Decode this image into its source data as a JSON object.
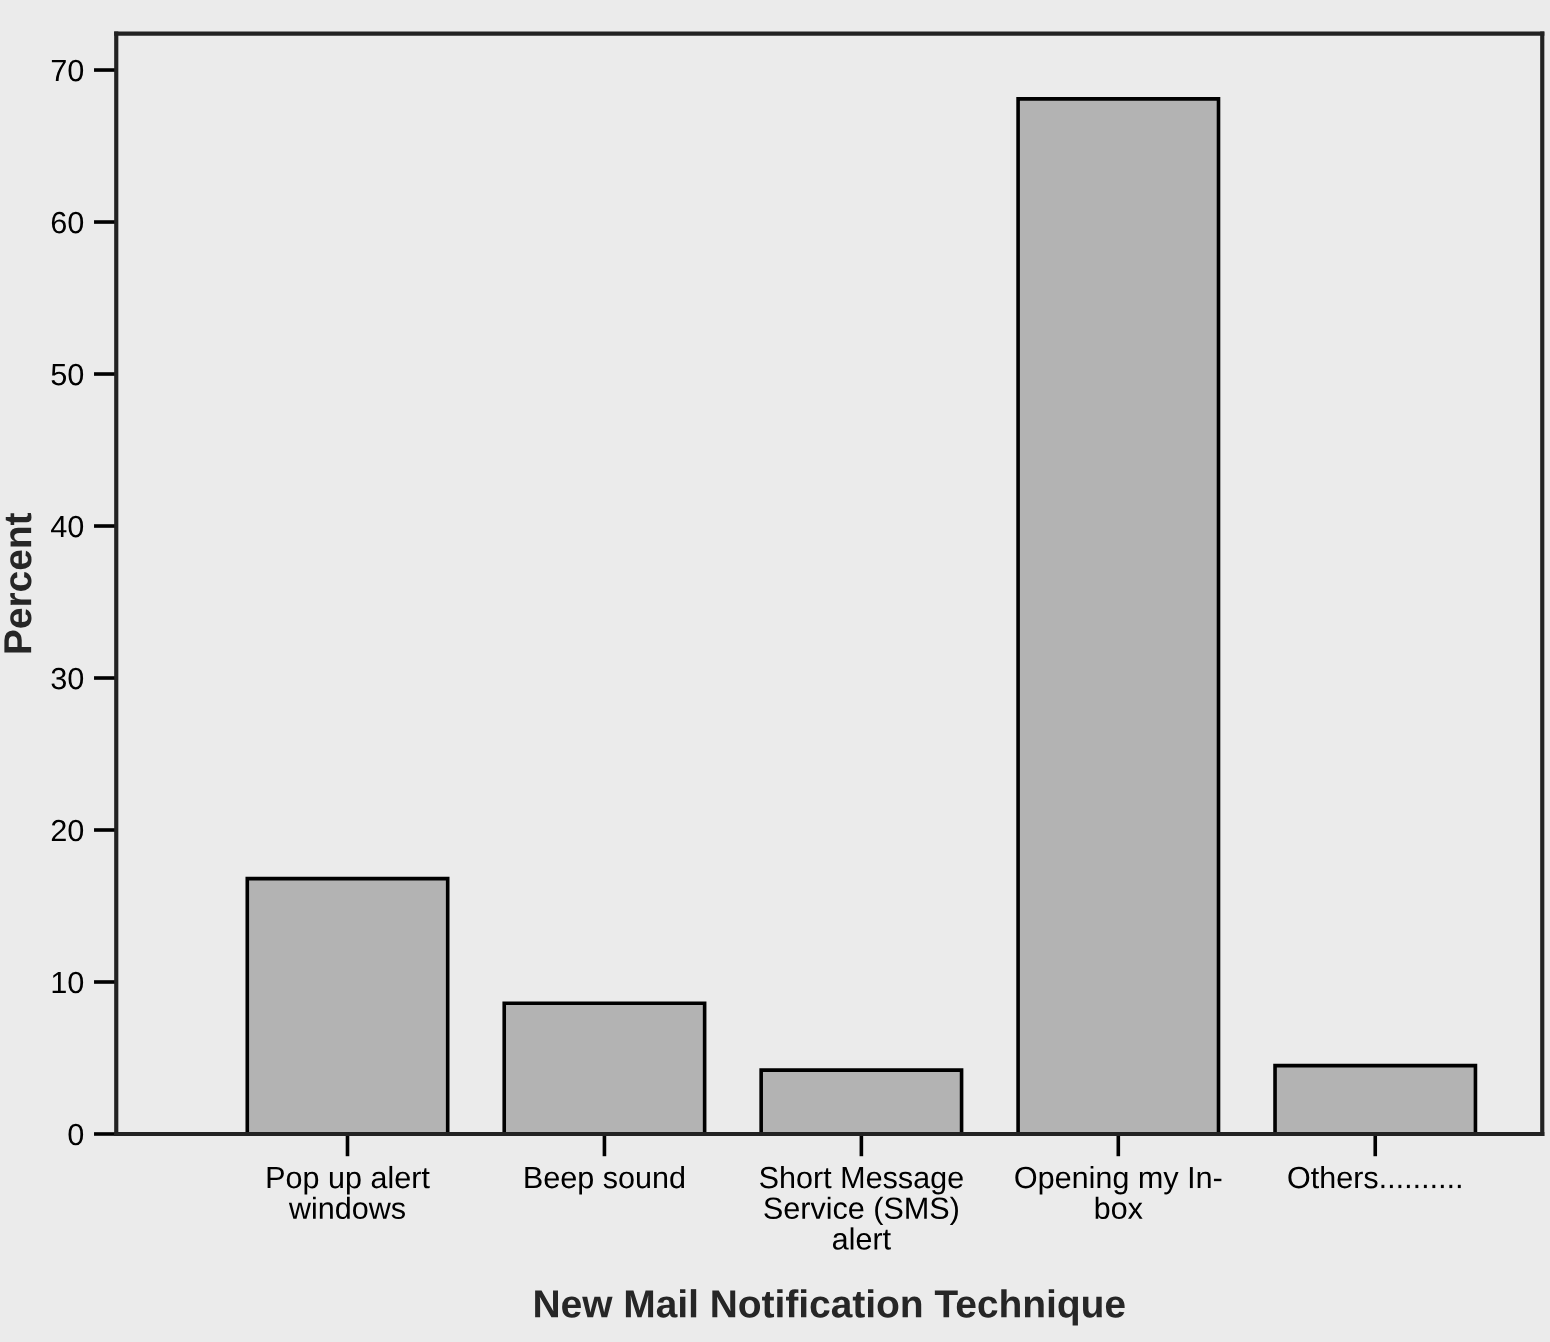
{
  "chart_data": {
    "type": "bar",
    "xlabel": "New Mail Notification Technique",
    "ylabel": "Percent",
    "categories": [
      "Pop up alert windows",
      "Beep sound",
      "Short Message Service (SMS) alert",
      "Opening my In-box",
      "Others.........."
    ],
    "values": [
      16.8,
      8.6,
      4.2,
      68.1,
      4.5
    ],
    "color": "#b3b3b3",
    "ylim": [
      0,
      72.4
    ],
    "yticks": [
      0,
      10,
      20,
      30,
      40,
      50,
      60,
      70
    ],
    "grid": false
  }
}
